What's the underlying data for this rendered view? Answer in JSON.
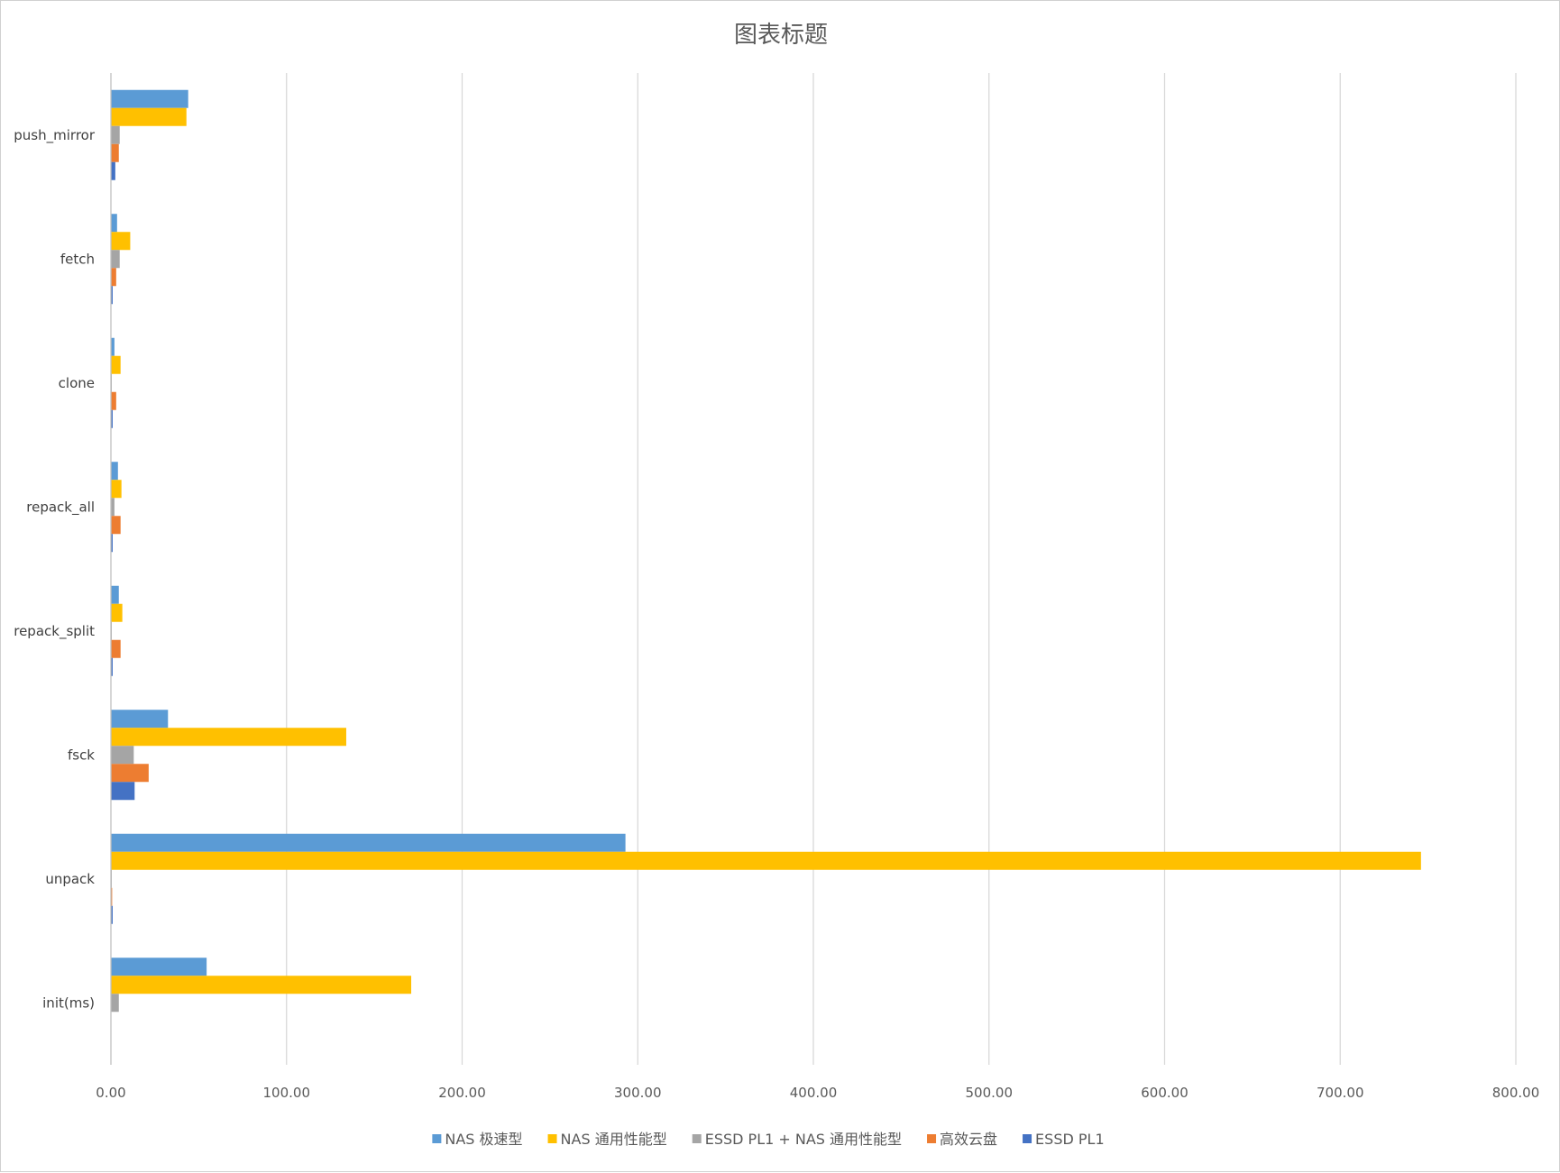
{
  "chart_data": {
    "type": "bar",
    "orientation": "horizontal",
    "title": "图表标题",
    "xlabel": "",
    "ylabel": "",
    "xlim": [
      0,
      800
    ],
    "x_ticks": [
      "0.00",
      "100.00",
      "200.00",
      "300.00",
      "400.00",
      "500.00",
      "600.00",
      "700.00",
      "800.00"
    ],
    "grid": true,
    "legend_position": "bottom",
    "categories": [
      "push_mirror",
      "fetch",
      "clone",
      "repack_all",
      "repack_split",
      "fsck",
      "unpack",
      "init(ms)"
    ],
    "series": [
      {
        "name": "NAS 极速型",
        "color": "#5B9BD5",
        "values": [
          44,
          3.5,
          2,
          4,
          4.5,
          32.5,
          293,
          54.5
        ]
      },
      {
        "name": "NAS 通用性能型",
        "color": "#FFC000",
        "values": [
          43,
          11,
          5.5,
          6,
          6.5,
          134,
          746,
          171
        ]
      },
      {
        "name": "ESSD PL1 + NAS 通用性能型",
        "color": "#A5A5A5",
        "values": [
          5,
          5,
          0.5,
          2,
          0.5,
          13,
          0.5,
          4.5
        ]
      },
      {
        "name": "高效云盘",
        "color": "#ED7D31",
        "values": [
          4.5,
          3,
          3,
          5.5,
          5.5,
          21.5,
          0.7,
          0
        ]
      },
      {
        "name": "ESSD PL1",
        "color": "#4472C4",
        "values": [
          2.5,
          1,
          1,
          1,
          1,
          13.5,
          1,
          0
        ]
      }
    ]
  }
}
